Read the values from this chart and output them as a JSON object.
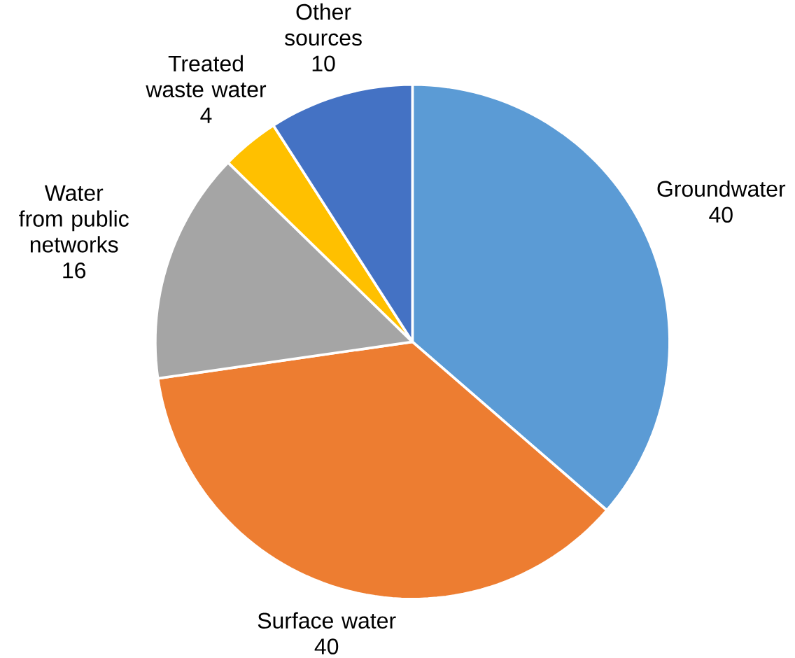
{
  "chart_data": {
    "type": "pie",
    "categories": [
      "Groundwater",
      "Surface water",
      "Water from public networks",
      "Treated waste water",
      "Other sources"
    ],
    "values": [
      40,
      40,
      16,
      4,
      10
    ],
    "colors": [
      "#5b9bd5",
      "#ed7d31",
      "#a5a5a5",
      "#ffc000",
      "#4472c4"
    ],
    "data_labels": true
  }
}
